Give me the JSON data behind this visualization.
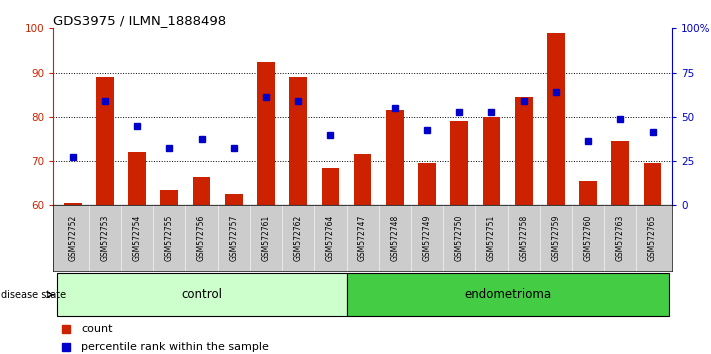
{
  "title": "GDS3975 / ILMN_1888498",
  "samples": [
    "GSM572752",
    "GSM572753",
    "GSM572754",
    "GSM572755",
    "GSM572756",
    "GSM572757",
    "GSM572761",
    "GSM572762",
    "GSM572764",
    "GSM572747",
    "GSM572748",
    "GSM572749",
    "GSM572750",
    "GSM572751",
    "GSM572758",
    "GSM572759",
    "GSM572760",
    "GSM572763",
    "GSM572765"
  ],
  "bar_values": [
    60.5,
    89.0,
    72.0,
    63.5,
    66.5,
    62.5,
    92.5,
    89.0,
    68.5,
    71.5,
    81.5,
    69.5,
    79.0,
    80.0,
    84.5,
    99.0,
    65.5,
    74.5,
    69.5
  ],
  "dot_values_left": [
    71.0,
    83.5,
    78.0,
    73.0,
    75.0,
    73.0,
    84.5,
    83.5,
    76.0,
    null,
    82.0,
    77.0,
    81.0,
    81.0,
    83.5,
    85.5,
    74.5,
    79.5,
    76.5
  ],
  "control_count": 9,
  "endometrioma_count": 10,
  "ylim_left": [
    60,
    100
  ],
  "yticks_left": [
    60,
    70,
    80,
    90,
    100
  ],
  "ytick_labels_right": [
    "0",
    "25",
    "50",
    "75",
    "100%"
  ],
  "bar_color": "#cc2200",
  "dot_color": "#0000cc",
  "control_color": "#ccffcc",
  "endometrioma_color": "#44cc44",
  "label_bg_color": "#cccccc",
  "left_axis_color": "#cc2200",
  "right_axis_color": "#0000cc"
}
